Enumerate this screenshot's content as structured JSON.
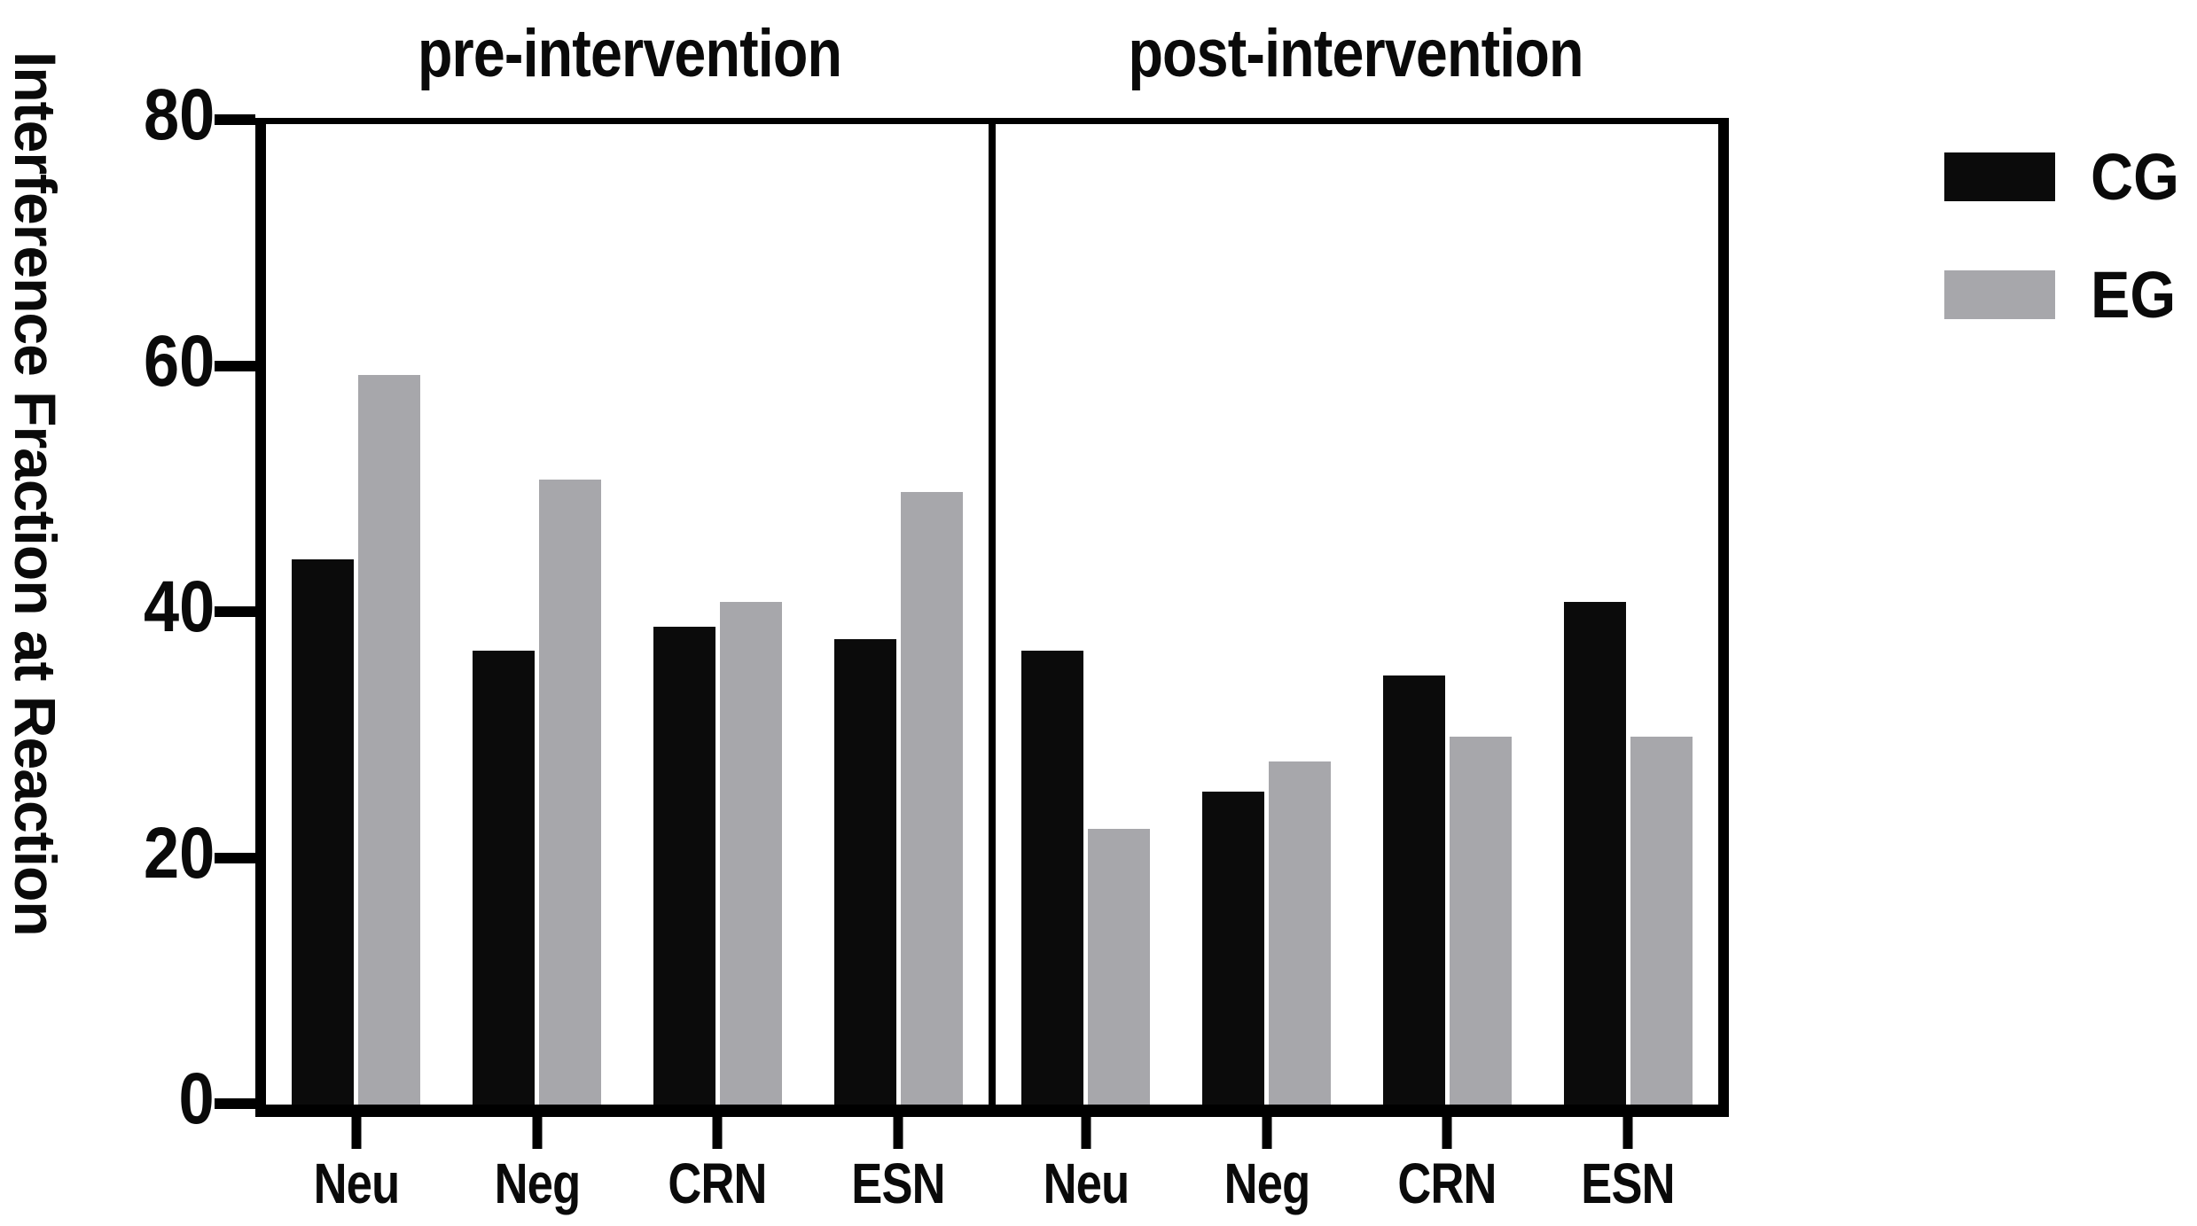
{
  "y_axis": {
    "label": "Interference Fraction at Reaction",
    "ticks": [
      0,
      20,
      40,
      60,
      80
    ],
    "max": 80
  },
  "x_axis": {
    "categories": [
      "Neu",
      "Neg",
      "CRN",
      "ESN"
    ]
  },
  "legend": [
    {
      "label": "CG",
      "color": "#0b0b0b"
    },
    {
      "label": "EG",
      "color": "#a7a7ab"
    }
  ],
  "colors": {
    "cg": "#0b0b0b",
    "eg": "#a7a7ab",
    "axis": "#000000"
  },
  "chart_data": {
    "type": "bar",
    "ylabel": "Interference Fraction at Reaction",
    "xlabel": "",
    "ylim": [
      0,
      80
    ],
    "grid": false,
    "legend_position": "right",
    "panels": [
      {
        "title": "pre-intervention",
        "categories": [
          "Neu",
          "Neg",
          "CRN",
          "ESN"
        ],
        "series": [
          {
            "name": "CG",
            "color": "#0b0b0b",
            "values": [
              44.5,
              37,
              39,
              38
            ]
          },
          {
            "name": "EG",
            "color": "#a7a7ab",
            "values": [
              59.5,
              51,
              41,
              50
            ]
          }
        ]
      },
      {
        "title": "post-intervention",
        "categories": [
          "Neu",
          "Neg",
          "CRN",
          "ESN"
        ],
        "series": [
          {
            "name": "CG",
            "color": "#0b0b0b",
            "values": [
              37,
              25.5,
              35,
              41
            ]
          },
          {
            "name": "EG",
            "color": "#a7a7ab",
            "values": [
              22.5,
              28,
              30,
              30
            ]
          }
        ]
      }
    ]
  }
}
